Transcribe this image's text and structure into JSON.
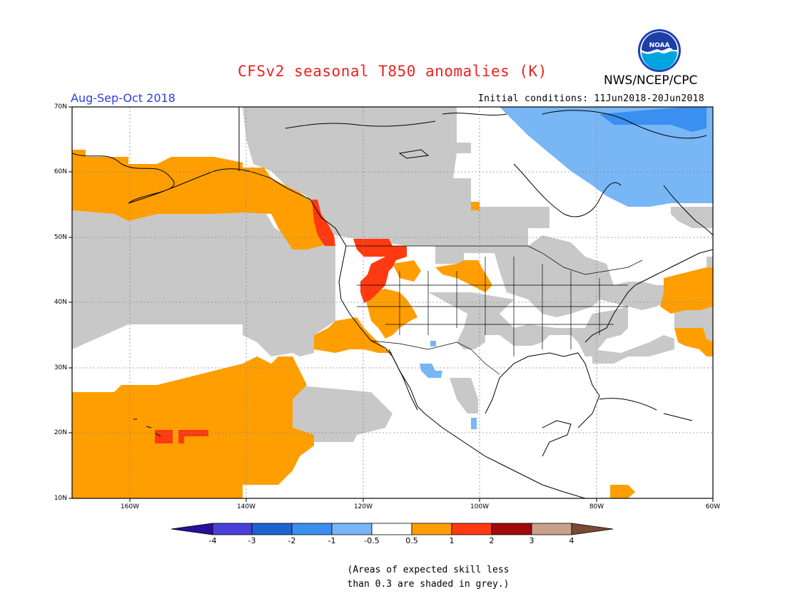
{
  "title": "CFSv2 seasonal T850 anomalies (K)",
  "agency": "NWS/NCEP/CPC",
  "logo_text": "NOAA",
  "season": "Aug-Sep-Oct 2018",
  "initial_conditions": "Initial conditions: 11Jun2018-20Jun2018",
  "lat_labels": [
    "70N",
    "60N",
    "50N",
    "40N",
    "30N",
    "20N",
    "10N"
  ],
  "lon_labels": [
    "160W",
    "140W",
    "120W",
    "100W",
    "80W",
    "60W"
  ],
  "colorbar": {
    "labels": [
      "-4",
      "-3",
      "-2",
      "-1",
      "-0.5",
      "0.5",
      "1",
      "2",
      "3",
      "4"
    ],
    "colors": [
      "#2a0f9e",
      "#4b3fd9",
      "#1f62d0",
      "#3a8ff0",
      "#78b6f5",
      "#ffffff",
      "#ff9e00",
      "#ff3a10",
      "#a00a0a",
      "#c9a08c",
      "#7a4a35"
    ]
  },
  "note_line1": "(Areas of expected skill less",
  "note_line2": "than 0.3 are shaded in grey.)",
  "map_colors": {
    "grey": "#c8c8c8",
    "orange": "#ff9e00",
    "red": "#ff3a10",
    "light_blue": "#78b6f5",
    "blue": "#3a8ff0"
  }
}
